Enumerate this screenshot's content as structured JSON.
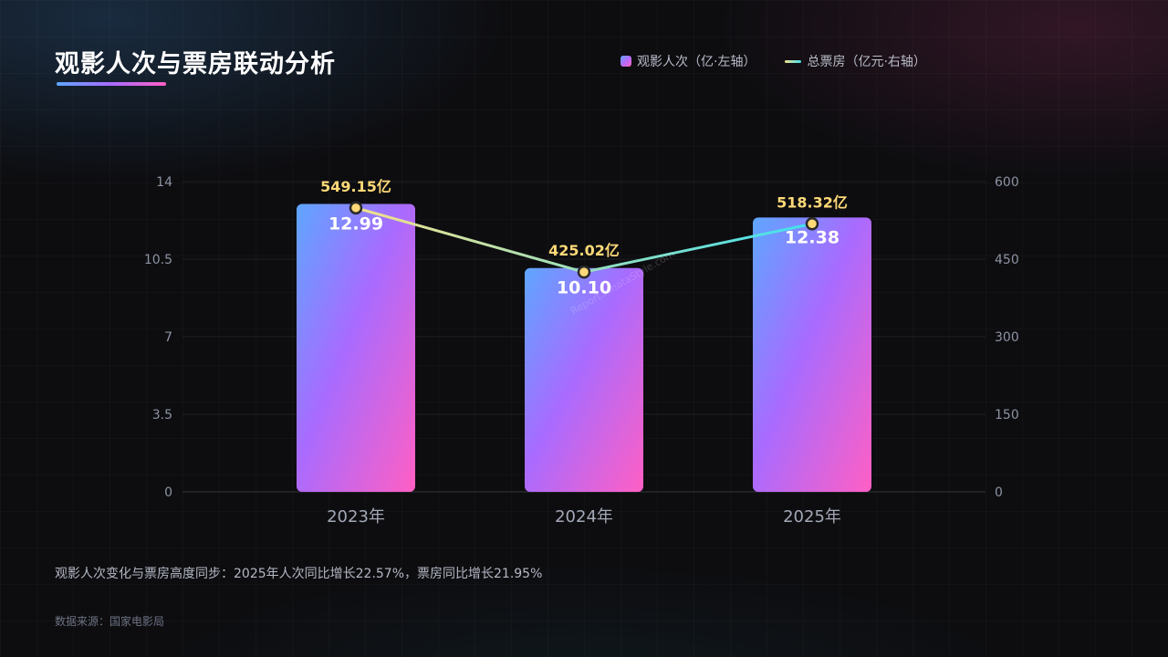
{
  "title": "观影人次与票房联动分析",
  "legend": {
    "bar_label": "观影人次（亿·左轴）",
    "line_label": "总票房（亿元·右轴）"
  },
  "note": "观影人次变化与票房高度同步：2025年人次同比增长22.57%，票房同比增长21.95%",
  "source": "数据来源：国家电影局",
  "watermark": "Report.hinataStyle.com",
  "colors": {
    "bar_gradient": [
      "#5ea6ff",
      "#a86bff",
      "#ff5fc4"
    ],
    "line_gradient": [
      "#f5e08a",
      "#3fe0ee"
    ],
    "line_label": "#ffd977",
    "point_fill": "#ffd977",
    "point_stroke": "#2a2a2a"
  },
  "chart_data": {
    "type": "bar+line",
    "categories": [
      "2023年",
      "2024年",
      "2025年"
    ],
    "series": [
      {
        "name": "观影人次（亿·左轴）",
        "type": "bar",
        "axis": "left",
        "values": [
          12.99,
          10.1,
          12.38
        ],
        "labels": [
          "12.99",
          "10.10",
          "12.38"
        ]
      },
      {
        "name": "总票房（亿元·右轴）",
        "type": "line",
        "axis": "right",
        "values": [
          549.15,
          425.02,
          518.32
        ],
        "labels": [
          "549.15亿",
          "425.02亿",
          "518.32亿"
        ]
      }
    ],
    "y_left": {
      "min": 0,
      "max": 14,
      "ticks": [
        "0",
        "3.5",
        "7",
        "10.5",
        "14"
      ]
    },
    "y_right": {
      "min": 0,
      "max": 600,
      "ticks": [
        "0",
        "150",
        "300",
        "450",
        "600"
      ]
    },
    "grid": true
  }
}
